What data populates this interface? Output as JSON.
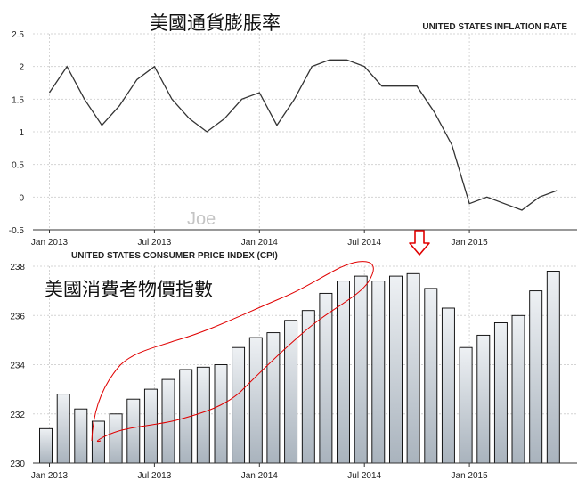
{
  "chart_data": [
    {
      "type": "line",
      "title": "UNITED STATES INFLATION RATE",
      "annotation_title": "美國通貨膨脹率",
      "watermark": "Joe",
      "x_tick_labels": [
        "Jan 2013",
        "Jul 2013",
        "Jan 2014",
        "Jul 2014",
        "Jan 2015"
      ],
      "y_tick_labels": [
        "2.5",
        "2",
        "1.5",
        "1",
        "0.5",
        "0",
        "-0.5"
      ],
      "ylim": [
        -0.5,
        2.5
      ],
      "grid": true,
      "x": [
        "2013-01",
        "2013-02",
        "2013-03",
        "2013-04",
        "2013-05",
        "2013-06",
        "2013-07",
        "2013-08",
        "2013-09",
        "2013-10",
        "2013-11",
        "2013-12",
        "2014-01",
        "2014-02",
        "2014-03",
        "2014-04",
        "2014-05",
        "2014-06",
        "2014-07",
        "2014-08",
        "2014-09",
        "2014-10",
        "2014-11",
        "2014-12",
        "2015-01",
        "2015-02",
        "2015-03",
        "2015-04",
        "2015-05",
        "2015-06"
      ],
      "values": [
        1.6,
        2.0,
        1.5,
        1.1,
        1.4,
        1.8,
        2.0,
        1.5,
        1.2,
        1.0,
        1.2,
        1.5,
        1.6,
        1.1,
        1.5,
        2.0,
        2.1,
        2.1,
        2.0,
        1.7,
        1.7,
        1.7,
        1.3,
        0.8,
        -0.1,
        0.0,
        -0.1,
        -0.2,
        0.0,
        0.1
      ],
      "color": "#333333"
    },
    {
      "type": "bar",
      "title": "UNITED STATES CONSUMER PRICE INDEX (CPI)",
      "annotation_title": "美國消費者物價指數",
      "x_tick_labels": [
        "Jan 2013",
        "Jul 2013",
        "Jan 2014",
        "Jul 2014",
        "Jan 2015"
      ],
      "y_tick_labels": [
        "238",
        "236",
        "234",
        "232",
        "230"
      ],
      "ylim": [
        230,
        238
      ],
      "grid": true,
      "categories": [
        "2013-01",
        "2013-02",
        "2013-03",
        "2013-04",
        "2013-05",
        "2013-06",
        "2013-07",
        "2013-08",
        "2013-09",
        "2013-10",
        "2013-11",
        "2013-12",
        "2014-01",
        "2014-02",
        "2014-03",
        "2014-04",
        "2014-05",
        "2014-06",
        "2014-07",
        "2014-08",
        "2014-09",
        "2014-10",
        "2014-11",
        "2014-12",
        "2015-01",
        "2015-02",
        "2015-03",
        "2015-04",
        "2015-05",
        "2015-06"
      ],
      "values": [
        231.4,
        232.8,
        232.2,
        231.7,
        232.0,
        232.6,
        233.0,
        233.4,
        233.8,
        233.9,
        234.0,
        234.7,
        235.1,
        235.3,
        235.8,
        236.2,
        236.9,
        237.4,
        237.6,
        237.4,
        237.6,
        237.7,
        237.1,
        236.3,
        234.7,
        235.2,
        235.7,
        236.0,
        237.0,
        237.8
      ],
      "bar_fill_top": "#eef1f4",
      "bar_fill_bottom": "#a9b3bd",
      "bar_stroke": "#000000",
      "annotation_color": "#e00000"
    }
  ]
}
